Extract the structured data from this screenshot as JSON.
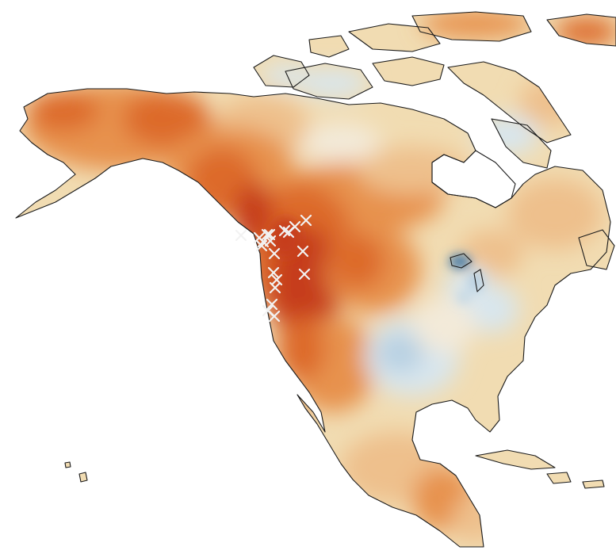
{
  "map": {
    "region": "North America",
    "colors": {
      "land_base": "#f1dcb2",
      "light_orange": "#eec08c",
      "orange": "#e7924e",
      "deep_orange": "#dd6a2a",
      "dark_red": "#c63d1a",
      "light_blue": "#d8e6ee",
      "mid_blue": "#b7d0e2",
      "dark_blue": "#3f78a6",
      "neutral": "#f3ead9",
      "coastline": "#1a1a1a",
      "marker": "#f2f2f2"
    },
    "marker_symbol": "×",
    "marker_count": 20
  }
}
